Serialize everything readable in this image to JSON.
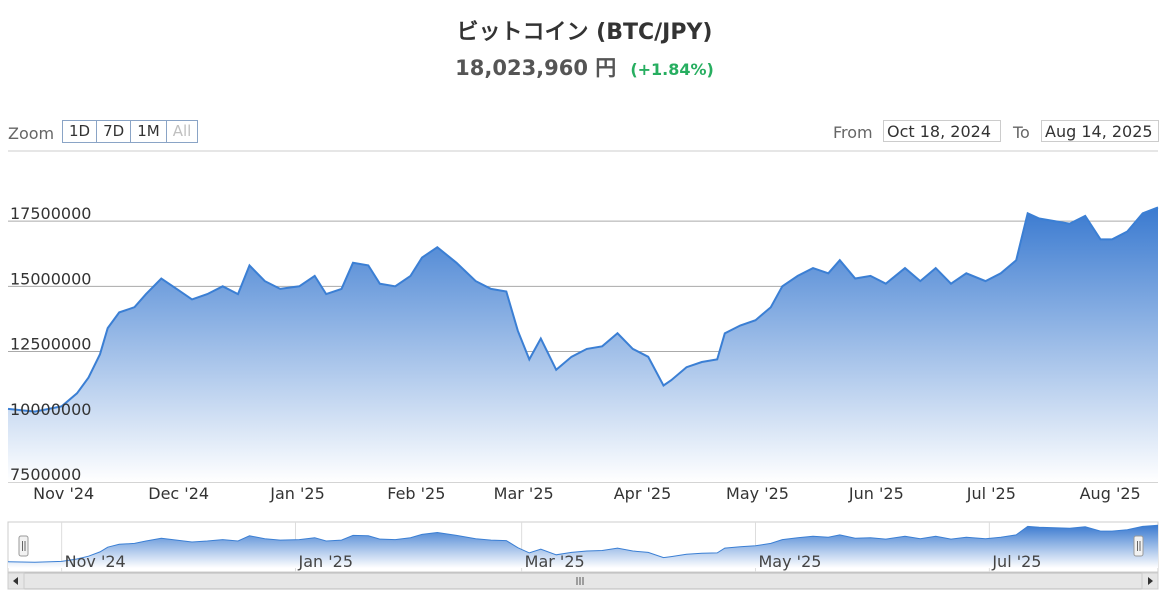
{
  "header": {
    "title": "ビットコイン (BTC/JPY)",
    "price": "18,023,960 円",
    "change": "(+1.84%)",
    "change_color": "#27ae60"
  },
  "toolbar": {
    "zoom_label": "Zoom",
    "zoom_buttons": [
      "1D",
      "7D",
      "1M",
      "All"
    ],
    "from_label": "From",
    "from_value": "Oct 18, 2024",
    "to_label": "To",
    "to_value": "Aug 14, 2025"
  },
  "colors": {
    "line": "#3b7fd4",
    "area_top": "#3a7ad0",
    "area_bottom": "#ffffff",
    "grid": "#aaaaaa"
  },
  "chart_data": {
    "type": "area",
    "title": "ビットコイン (BTC/JPY)",
    "x_tick_labels": [
      "Nov '24",
      "Dec '24",
      "Jan '25",
      "Feb '25",
      "Mar '25",
      "Apr '25",
      "May '25",
      "Jun '25",
      "Jul '25",
      "Aug '25"
    ],
    "y_tick_labels": [
      "7500000",
      "10000000",
      "12500000",
      "15000000",
      "17500000"
    ],
    "ylim": [
      7500000,
      18500000
    ],
    "x_range": [
      "2024-10-18",
      "2025-08-14"
    ],
    "grid": true,
    "navigator_tick_labels": [
      "Nov '24",
      "Jan '25",
      "Mar '25",
      "May '25",
      "Jul '25"
    ],
    "series": [
      {
        "x": [
          "2024-10-18",
          "2024-10-25",
          "2024-11-01",
          "2024-11-05",
          "2024-11-08",
          "2024-11-11",
          "2024-11-13",
          "2024-11-16",
          "2024-11-20",
          "2024-11-23",
          "2024-11-27",
          "2024-12-01",
          "2024-12-05",
          "2024-12-09",
          "2024-12-13",
          "2024-12-17",
          "2024-12-20",
          "2024-12-24",
          "2024-12-28",
          "2025-01-02",
          "2025-01-06",
          "2025-01-09",
          "2025-01-13",
          "2025-01-16",
          "2025-01-20",
          "2025-01-23",
          "2025-01-27",
          "2025-01-31",
          "2025-02-03",
          "2025-02-07",
          "2025-02-12",
          "2025-02-17",
          "2025-02-21",
          "2025-02-25",
          "2025-02-28",
          "2025-03-03",
          "2025-03-06",
          "2025-03-10",
          "2025-03-14",
          "2025-03-18",
          "2025-03-22",
          "2025-03-26",
          "2025-03-30",
          "2025-04-03",
          "2025-04-07",
          "2025-04-09",
          "2025-04-13",
          "2025-04-17",
          "2025-04-21",
          "2025-04-23",
          "2025-04-27",
          "2025-05-01",
          "2025-05-05",
          "2025-05-08",
          "2025-05-12",
          "2025-05-16",
          "2025-05-20",
          "2025-05-23",
          "2025-05-27",
          "2025-05-31",
          "2025-06-04",
          "2025-06-09",
          "2025-06-13",
          "2025-06-17",
          "2025-06-21",
          "2025-06-25",
          "2025-06-30",
          "2025-07-04",
          "2025-07-08",
          "2025-07-11",
          "2025-07-14",
          "2025-07-18",
          "2025-07-22",
          "2025-07-26",
          "2025-07-30",
          "2025-08-02",
          "2025-08-06",
          "2025-08-10",
          "2025-08-14"
        ],
        "values": [
          10300000,
          10200000,
          10400000,
          10900000,
          11500000,
          12400000,
          13400000,
          14000000,
          14200000,
          14700000,
          15300000,
          14900000,
          14500000,
          14700000,
          15000000,
          14700000,
          15800000,
          15200000,
          14900000,
          15000000,
          15400000,
          14700000,
          14900000,
          15900000,
          15800000,
          15100000,
          15000000,
          15400000,
          16100000,
          16500000,
          15900000,
          15200000,
          14900000,
          14800000,
          13300000,
          12200000,
          13000000,
          11800000,
          12300000,
          12600000,
          12700000,
          13200000,
          12600000,
          12300000,
          11200000,
          11400000,
          11900000,
          12100000,
          12200000,
          13200000,
          13500000,
          13700000,
          14200000,
          15000000,
          15400000,
          15700000,
          15500000,
          16000000,
          15300000,
          15400000,
          15100000,
          15700000,
          15200000,
          15700000,
          15100000,
          15500000,
          15200000,
          15500000,
          16000000,
          17800000,
          17600000,
          17500000,
          17400000,
          17700000,
          16800000,
          16800000,
          17100000,
          17800000,
          18023960
        ]
      }
    ]
  }
}
